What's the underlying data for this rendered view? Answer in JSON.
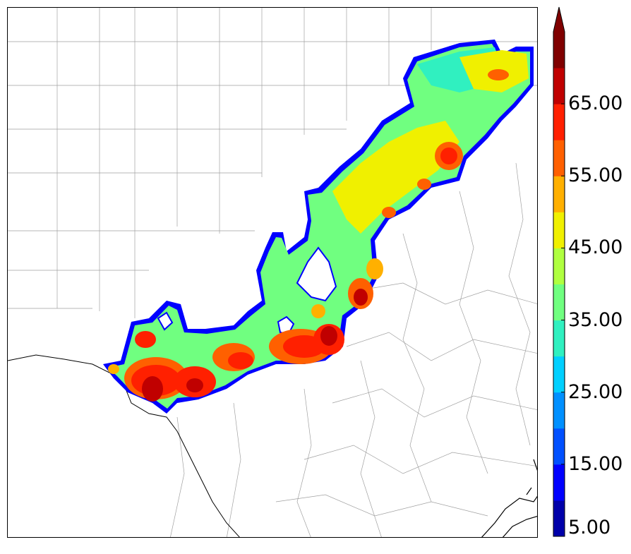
{
  "colorbar": {
    "tick_labels": [
      "5.00",
      "15.00",
      "25.00",
      "35.00",
      "45.00",
      "55.00",
      "65.00"
    ],
    "levels": [
      5,
      10,
      15,
      20,
      25,
      30,
      35,
      40,
      45,
      50,
      55,
      60,
      65,
      70
    ],
    "colors": [
      "#0000aa",
      "#0000ff",
      "#0050ff",
      "#0090ff",
      "#00d0ff",
      "#30f0c0",
      "#70ff80",
      "#b0ff40",
      "#f0f000",
      "#ffb000",
      "#ff6000",
      "#ff2000",
      "#c00000",
      "#800000"
    ],
    "extend": "max"
  },
  "map": {
    "colors": {
      "county_lines": "#999999",
      "state_border": "#000000",
      "coastline": "#000000",
      "rain_outline": "#0000ff"
    }
  }
}
